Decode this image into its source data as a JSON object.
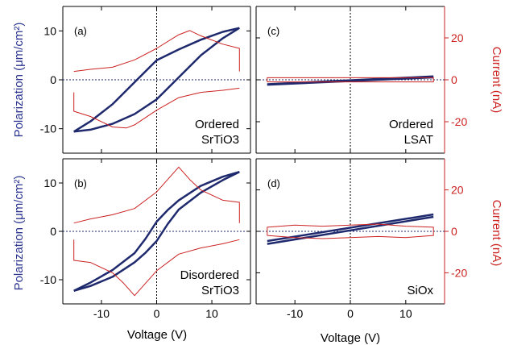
{
  "colors": {
    "polarization": "#1f2a6e",
    "current": "#cc2222",
    "axis": "#000000",
    "left_axis_label": "#2b3590",
    "right_axis_label": "#cc2222"
  },
  "labels": {
    "xlabel": "Voltage (V)",
    "ylabel_left": "Polarization (μm/cm²)",
    "ylabel_right": "Current (nA)"
  },
  "chart_data": [
    {
      "type": "line",
      "panel": "(a)",
      "annotation": [
        "Ordered",
        "SrTiO3"
      ],
      "xlim": [
        -17,
        17
      ],
      "ylim_left": [
        -15,
        15
      ],
      "ylim_right": [
        -35,
        35
      ],
      "xticks": [
        -10,
        0,
        10
      ],
      "yticks_left": [
        -10,
        0,
        10
      ],
      "series": [
        {
          "axis": "left",
          "x": [
            -15,
            -12,
            -8,
            -4,
            0,
            4,
            8,
            12,
            15
          ],
          "y": [
            -10.6,
            -10.2,
            -9.0,
            -7.0,
            -4.0,
            0.5,
            5.0,
            8.5,
            10.6
          ]
        },
        {
          "axis": "left",
          "x": [
            15,
            12,
            8,
            4,
            0,
            -4,
            -8,
            -12,
            -15
          ],
          "y": [
            10.6,
            9.8,
            8.2,
            6.2,
            4.0,
            -0.5,
            -5.0,
            -8.5,
            -10.6
          ]
        },
        {
          "axis": "right",
          "x": [
            -15,
            -15,
            -12,
            -8,
            -5.5,
            -4,
            0,
            4,
            8,
            12,
            15
          ],
          "y": [
            -6,
            -15,
            -17.5,
            -22.5,
            -23.0,
            -21.5,
            -14.5,
            -8.5,
            -6.0,
            -5.0,
            -4
          ]
        },
        {
          "axis": "right",
          "x": [
            15,
            15,
            12,
            8,
            6,
            4,
            0,
            -4,
            -8,
            -12,
            -15
          ],
          "y": [
            4,
            15,
            17.0,
            21.0,
            23.5,
            21.5,
            15.0,
            9.5,
            6.0,
            5.0,
            4
          ]
        }
      ]
    },
    {
      "type": "line",
      "panel": "(c)",
      "annotation": [
        "Ordered",
        "LSAT"
      ],
      "xlim": [
        -17,
        17
      ],
      "ylim_left": [
        -15,
        15
      ],
      "ylim_right": [
        -35,
        35
      ],
      "xticks": [
        -10,
        0,
        10
      ],
      "yticks_right": [
        -20,
        0,
        20
      ],
      "series": [
        {
          "axis": "left",
          "x": [
            -15,
            15
          ],
          "y": [
            -0.9,
            0.7
          ]
        },
        {
          "axis": "left",
          "x": [
            15,
            -15
          ],
          "y": [
            0.5,
            -1.0
          ]
        },
        {
          "axis": "right",
          "x": [
            -15,
            15,
            15,
            -15,
            -15
          ],
          "y": [
            -1.0,
            -1.0,
            1.0,
            1.0,
            -1.0
          ]
        }
      ]
    },
    {
      "type": "line",
      "panel": "(b)",
      "annotation": [
        "Disordered",
        "SrTiO3"
      ],
      "xlim": [
        -17,
        17
      ],
      "ylim_left": [
        -15,
        15
      ],
      "ylim_right": [
        -35,
        35
      ],
      "xticks": [
        -10,
        0,
        10
      ],
      "yticks_left": [
        -10,
        0,
        10
      ],
      "series": [
        {
          "axis": "left",
          "x": [
            -15,
            -12,
            -8,
            -4,
            -2,
            0,
            2,
            4,
            8,
            12,
            15
          ],
          "y": [
            -12.3,
            -11.3,
            -9.4,
            -6.4,
            -4.4,
            -2.0,
            1.5,
            4.5,
            8.0,
            10.6,
            12.3
          ]
        },
        {
          "axis": "left",
          "x": [
            15,
            12,
            8,
            4,
            2,
            0,
            -2,
            -4,
            -8,
            -12,
            -15
          ],
          "y": [
            12.3,
            11.3,
            9.4,
            6.4,
            4.4,
            2.0,
            -1.5,
            -4.5,
            -8.0,
            -10.6,
            -12.3
          ]
        },
        {
          "axis": "right",
          "x": [
            -15,
            -15,
            -12,
            -8,
            -6,
            -4,
            -2,
            0,
            4,
            8,
            12,
            15
          ],
          "y": [
            -4,
            -14,
            -15.0,
            -20.0,
            -25.0,
            -31.0,
            -25.0,
            -19.0,
            -11.0,
            -8.0,
            -6.0,
            -4
          ]
        },
        {
          "axis": "right",
          "x": [
            15,
            15,
            12,
            8,
            6,
            4,
            2,
            0,
            -4,
            -8,
            -12,
            -15
          ],
          "y": [
            4,
            14,
            15.0,
            20.0,
            25.0,
            31.0,
            25.0,
            19.0,
            11.0,
            8.0,
            6.0,
            4
          ]
        }
      ]
    },
    {
      "type": "line",
      "panel": "(d)",
      "annotation": [
        "SiOx"
      ],
      "xlim": [
        -17,
        17
      ],
      "ylim_left": [
        -15,
        15
      ],
      "ylim_right": [
        -35,
        35
      ],
      "xticks": [
        -10,
        0,
        10
      ],
      "yticks_right": [
        -20,
        0,
        20
      ],
      "series": [
        {
          "axis": "left",
          "x": [
            -15,
            15
          ],
          "y": [
            -2.0,
            3.5
          ]
        },
        {
          "axis": "left",
          "x": [
            15,
            -15
          ],
          "y": [
            3.0,
            -2.6
          ]
        },
        {
          "axis": "right",
          "x": [
            -15,
            -10,
            -5,
            0,
            5,
            10,
            15,
            15,
            10,
            5,
            0,
            -5,
            -10,
            -15,
            -15
          ],
          "y": [
            -2.0,
            -3.0,
            -3.5,
            -3.0,
            -2.5,
            -3.0,
            -2.0,
            2.0,
            2.5,
            3.5,
            3.0,
            2.5,
            3.0,
            2.0,
            -2.0
          ]
        }
      ]
    }
  ]
}
